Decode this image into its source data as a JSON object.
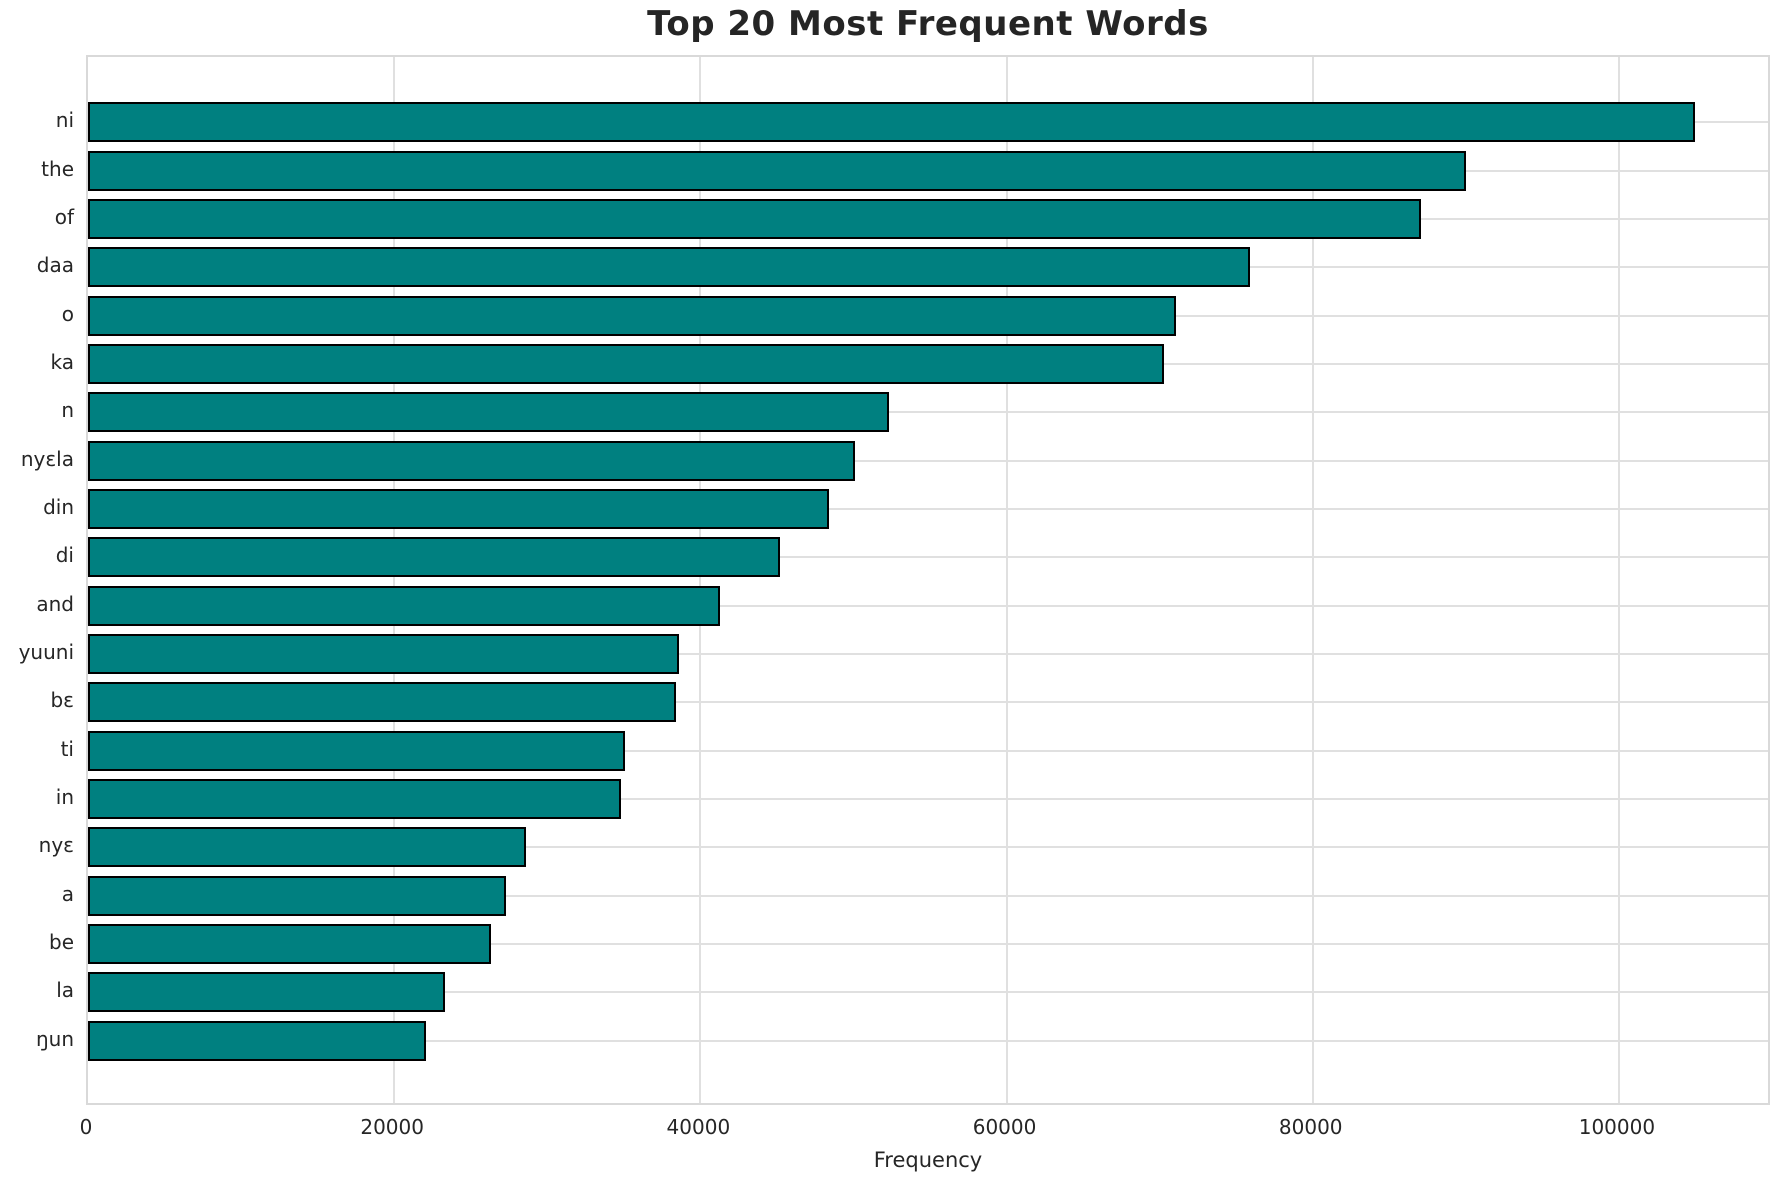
{
  "chart_data": {
    "type": "bar",
    "orientation": "horizontal",
    "title": "Top 20 Most Frequent Words",
    "xlabel": "Frequency",
    "ylabel": "",
    "categories": [
      "ni",
      "the",
      "of",
      "daa",
      "o",
      "ka",
      "n",
      "nyɛla",
      "din",
      "di",
      "and",
      "yuuni",
      "bɛ",
      "ti",
      "in",
      "nyɛ",
      "a",
      "be",
      "la",
      "ŋun"
    ],
    "values": [
      105000,
      90000,
      87100,
      75900,
      71100,
      70300,
      52300,
      50100,
      48400,
      45200,
      41300,
      38600,
      38400,
      35100,
      34800,
      28600,
      27300,
      26300,
      23300,
      22100
    ],
    "xlim": [
      0,
      110000
    ],
    "xticks": [
      0,
      20000,
      40000,
      60000,
      80000,
      100000
    ],
    "xtick_labels": [
      "0",
      "20000",
      "40000",
      "60000",
      "80000",
      "100000"
    ],
    "grid": true,
    "legend": false,
    "bar_color": "#008080",
    "bar_edge_color": "#000000",
    "grid_color": "#e0e0e0",
    "text_color": "#262626",
    "background_color": "#ffffff"
  }
}
